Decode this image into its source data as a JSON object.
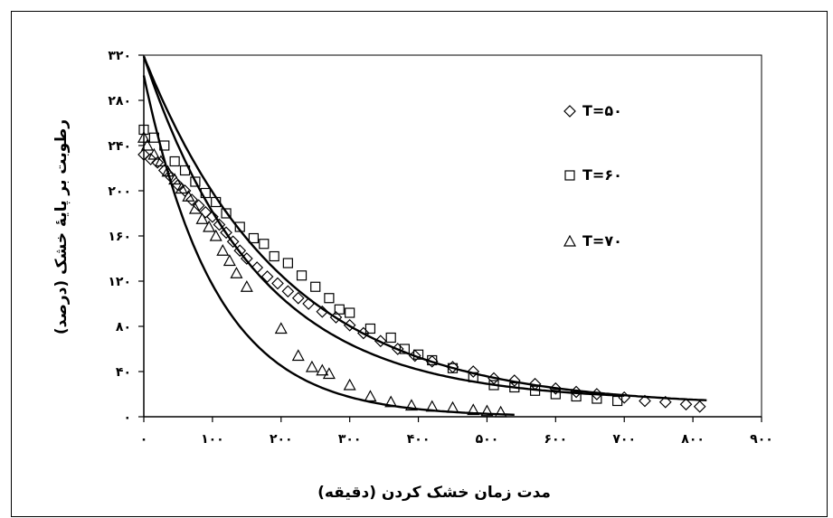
{
  "chart_data": {
    "type": "scatter",
    "xlabel": "مدت زمان خشک کردن (دقیقه)",
    "ylabel": "رطوبت بر پایهٔ خشک (درصد)",
    "xlim": [
      0,
      900
    ],
    "ylim": [
      0,
      320
    ],
    "x_ticks": [
      0,
      100,
      200,
      300,
      400,
      500,
      600,
      700,
      800,
      900
    ],
    "x_tick_labels": [
      "۰",
      "۱۰۰",
      "۲۰۰",
      "۳۰۰",
      "۴۰۰",
      "۵۰۰",
      "۶۰۰",
      "۷۰۰",
      "۸۰۰",
      "۹۰۰"
    ],
    "y_ticks": [
      0,
      40,
      80,
      120,
      160,
      200,
      240,
      280,
      320
    ],
    "y_tick_labels": [
      "۰",
      "۴۰",
      "۸۰",
      "۱۲۰",
      "۱۶۰",
      "۲۰۰",
      "۲۴۰",
      "۲۸۰",
      "۳۲۰"
    ],
    "legend_position": "top-right",
    "series": [
      {
        "name": "T=۵۰",
        "marker": "diamond",
        "x": [
          0,
          10,
          20,
          30,
          40,
          50,
          60,
          70,
          80,
          90,
          100,
          110,
          120,
          130,
          140,
          150,
          165,
          180,
          195,
          210,
          225,
          240,
          260,
          280,
          300,
          320,
          345,
          370,
          395,
          420,
          450,
          480,
          510,
          540,
          570,
          600,
          630,
          660,
          700,
          730,
          760,
          790,
          810
        ],
        "y": [
          232,
          228,
          225,
          218,
          212,
          205,
          200,
          192,
          187,
          181,
          177,
          170,
          163,
          155,
          147,
          140,
          132,
          124,
          118,
          111,
          105,
          100,
          93,
          88,
          81,
          74,
          67,
          60,
          54,
          49,
          44,
          40,
          34,
          32,
          29,
          25,
          22,
          20,
          17,
          14,
          13,
          11,
          9
        ]
      },
      {
        "name": "T=۶۰",
        "marker": "square",
        "x": [
          0,
          15,
          30,
          45,
          60,
          75,
          90,
          105,
          120,
          140,
          160,
          175,
          190,
          210,
          230,
          250,
          270,
          285,
          300,
          330,
          360,
          380,
          400,
          420,
          450,
          480,
          510,
          540,
          570,
          600,
          630,
          660,
          690
        ],
        "y": [
          254,
          247,
          240,
          226,
          218,
          208,
          198,
          190,
          180,
          168,
          158,
          153,
          142,
          136,
          125,
          115,
          105,
          95,
          92,
          78,
          70,
          60,
          55,
          50,
          43,
          35,
          28,
          26,
          23,
          20,
          18,
          16,
          14
        ]
      },
      {
        "name": "T=۷۰",
        "marker": "triangle",
        "x": [
          0,
          5,
          15,
          25,
          35,
          45,
          55,
          65,
          75,
          85,
          95,
          105,
          115,
          125,
          135,
          150,
          200,
          225,
          245,
          260,
          270,
          300,
          330,
          360,
          390,
          420,
          450,
          480,
          500,
          520
        ],
        "y": [
          247,
          240,
          232,
          226,
          217,
          210,
          202,
          195,
          184,
          175,
          168,
          160,
          147,
          138,
          127,
          115,
          78,
          54,
          44,
          41,
          38,
          28,
          18,
          13,
          10,
          9,
          8,
          6,
          5,
          4
        ]
      }
    ],
    "fitted_curves": [
      {
        "series": "T=۵۰",
        "form": "y = 310*exp(-0.0049x) + 9"
      },
      {
        "series": "T=۶۰",
        "form": "y = 305*exp(-0.0060x) + 14"
      },
      {
        "series": "T=۷۰",
        "form": "y = 302*exp(-0.0095x)"
      }
    ]
  }
}
